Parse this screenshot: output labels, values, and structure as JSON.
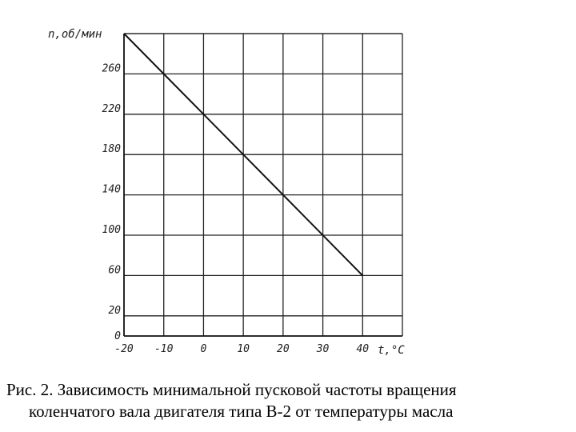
{
  "chart_data": {
    "type": "line",
    "xlabel": "t,°C",
    "ylabel": "n,об/мин",
    "xlim": [
      -20,
      50
    ],
    "ylim": [
      0,
      300
    ],
    "x_ticks": [
      "-20",
      "-10",
      "0",
      "10",
      "20",
      "30",
      "40"
    ],
    "x_tick_values": [
      -20,
      -10,
      0,
      10,
      20,
      30,
      40
    ],
    "y_ticks": [
      "0",
      "20",
      "60",
      "100",
      "140",
      "180",
      "220",
      "260"
    ],
    "y_tick_values": [
      0,
      20,
      60,
      100,
      140,
      180,
      220,
      260
    ],
    "grid": true,
    "series": [
      {
        "x": [
          -20,
          40
        ],
        "y": [
          300,
          60
        ]
      }
    ]
  },
  "caption": {
    "line1": "Рис. 2. Зависимость минимальной пусковой частоты вращения",
    "line2": "коленчатого вала двигателя типа В-2 от температуры масла"
  }
}
